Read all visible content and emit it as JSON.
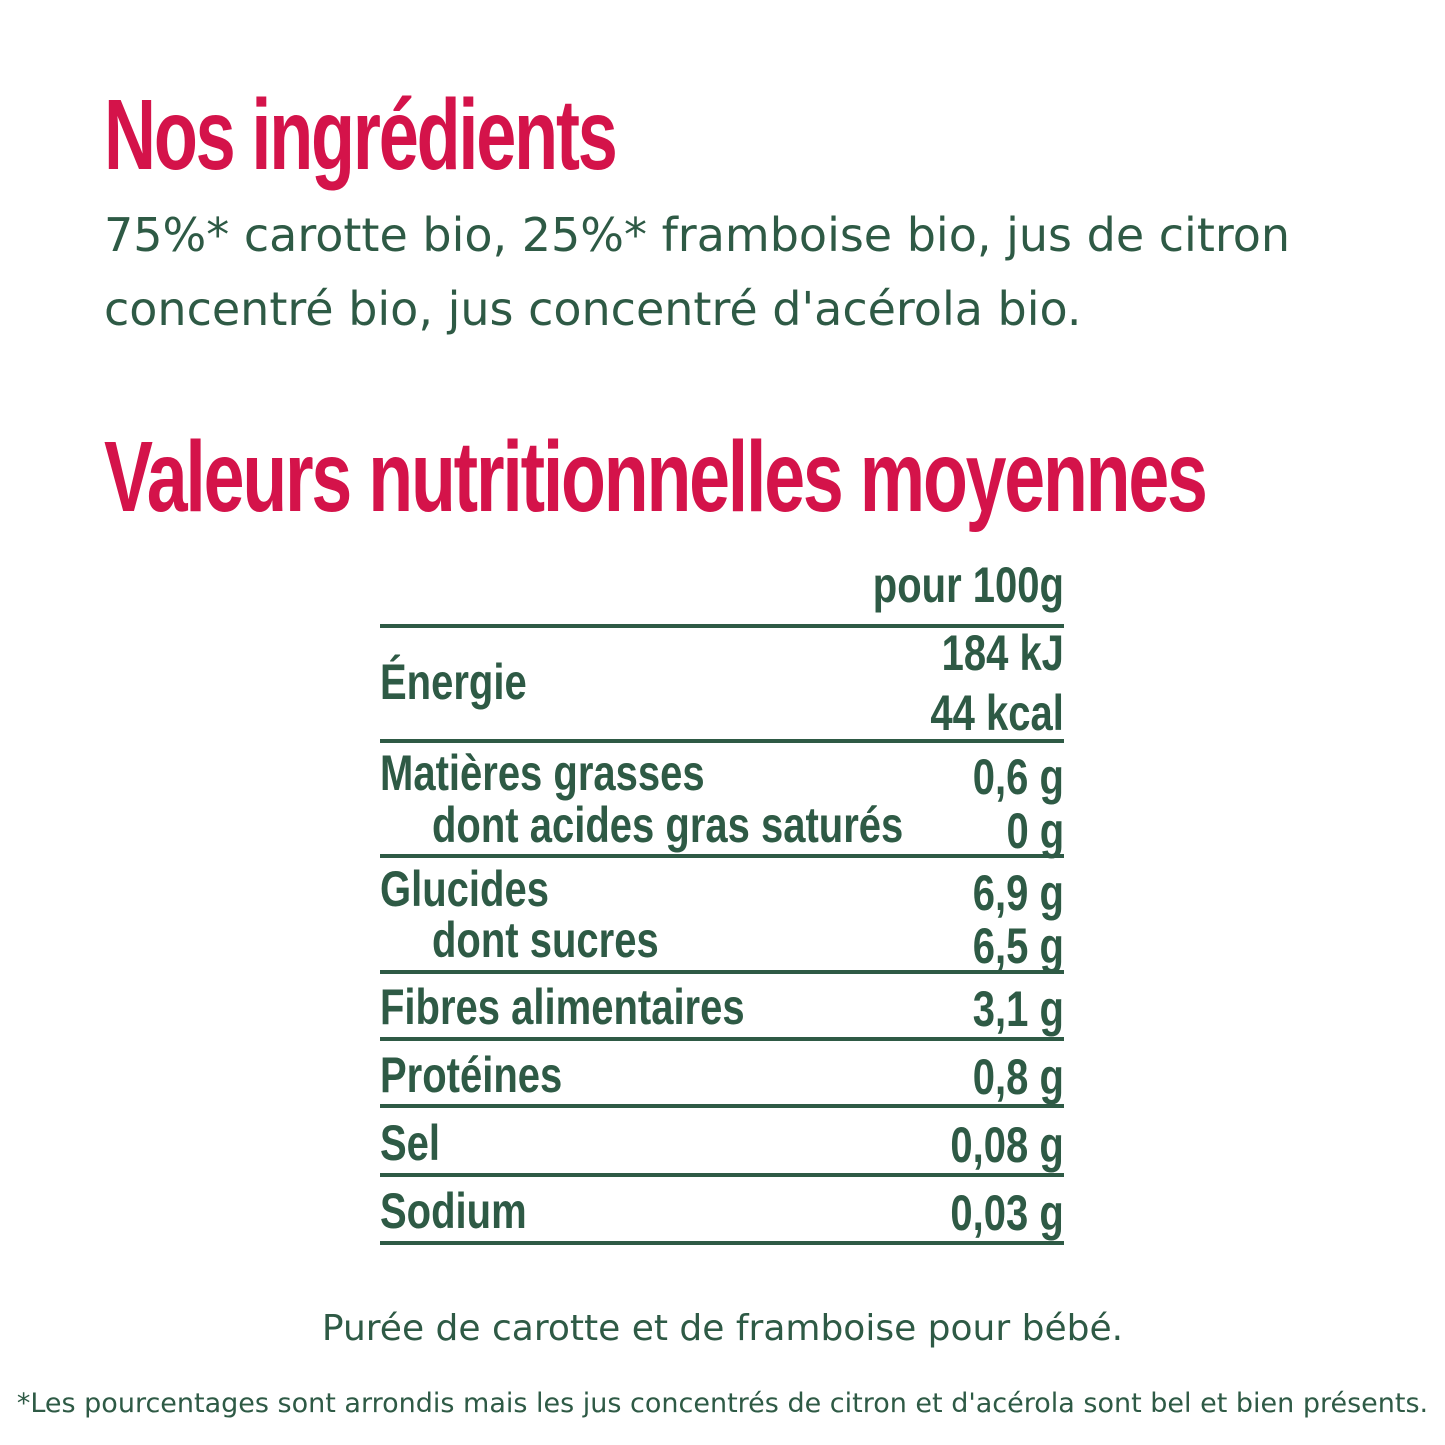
{
  "ingredients": {
    "title": "Nos ingrédients",
    "line1": "75%* carotte bio, 25%* framboise bio, jus de citron",
    "line2": "concentré bio, jus concentré d'acérola bio."
  },
  "nutrition": {
    "title": "Valeurs nutritionnelles moyennes",
    "column_header": "pour 100g",
    "rows": [
      {
        "label": "Énergie",
        "value1": "184 kJ",
        "value2": "44 kcal"
      },
      {
        "label": "Matières grasses",
        "value": "0,6 g"
      },
      {
        "label": "dont acides gras saturés",
        "value": "0 g"
      },
      {
        "label": "Glucides",
        "value": "6,9 g"
      },
      {
        "label": "dont sucres",
        "value": "6,5 g"
      },
      {
        "label": "Fibres alimentaires",
        "value": "3,1 g"
      },
      {
        "label": "Protéines",
        "value": "0,8 g"
      },
      {
        "label": "Sel",
        "value": "0,08 g"
      },
      {
        "label": "Sodium",
        "value": "0,03 g"
      }
    ]
  },
  "product_description": "Purée de carotte et de framboise pour bébé.",
  "footnote": "*Les pourcentages sont arrondis mais les jus concentrés de citron  et d'acérola sont bel et bien présents.",
  "colors": {
    "title_red": "#d4134a",
    "text_green": "#2e5a45",
    "background": "#ffffff"
  }
}
